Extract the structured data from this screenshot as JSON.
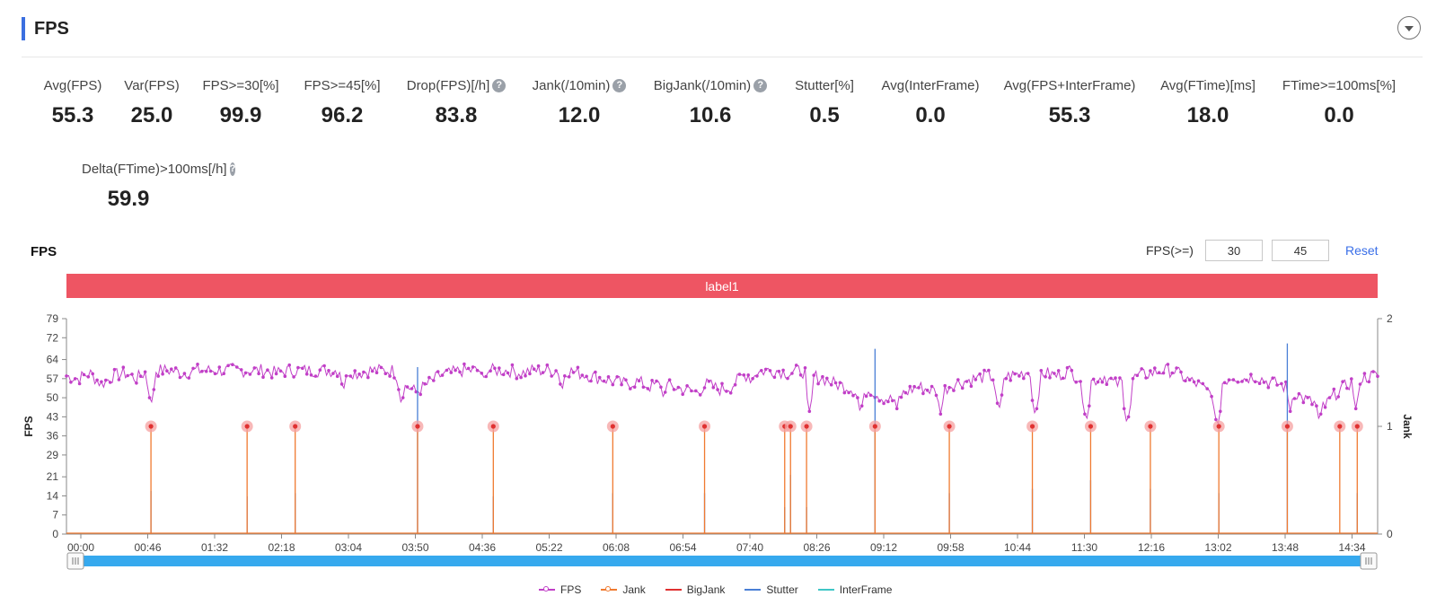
{
  "header": {
    "title": "FPS"
  },
  "metrics": [
    {
      "label": "Avg(FPS)",
      "value": "55.3",
      "help": false
    },
    {
      "label": "Var(FPS)",
      "value": "25.0",
      "help": false
    },
    {
      "label": "FPS>=30[%]",
      "value": "99.9",
      "help": false
    },
    {
      "label": "FPS>=45[%]",
      "value": "96.2",
      "help": false
    },
    {
      "label": "Drop(FPS)[/h]",
      "value": "83.8",
      "help": true
    },
    {
      "label": "Jank(/10min)",
      "value": "12.0",
      "help": true
    },
    {
      "label": "BigJank(/10min)",
      "value": "10.6",
      "help": true
    },
    {
      "label": "Stutter[%]",
      "value": "0.5",
      "help": false
    },
    {
      "label": "Avg(InterFrame)",
      "value": "0.0",
      "help": false
    },
    {
      "label": "Avg(FPS+InterFrame)",
      "value": "55.3",
      "help": false
    },
    {
      "label": "Avg(FTime)[ms]",
      "value": "18.0",
      "help": false
    },
    {
      "label": "FTime>=100ms[%]",
      "value": "0.0",
      "help": false
    },
    {
      "label": "Delta(FTime)>100ms[/h]",
      "value": "59.9",
      "help": true
    }
  ],
  "chart_section": {
    "title": "FPS",
    "threshold_label": "FPS(>=)",
    "threshold_low": "30",
    "threshold_high": "45",
    "reset_label": "Reset",
    "band_label": "label1"
  },
  "colors": {
    "fps": "#c13fc7",
    "jank": "#f07a30",
    "bigjank": "#e03131",
    "stutter": "#4a7fd6",
    "interframe": "#3fc6c6",
    "band": "#ee5563",
    "slider": "#36a9ee"
  },
  "chart_data": {
    "type": "line",
    "title": "",
    "ylabel_left": "FPS",
    "ylabel_right": "Jank",
    "yticks_left": [
      0,
      7,
      14,
      21,
      29,
      36,
      43,
      50,
      57,
      64,
      72,
      79
    ],
    "yticks_right": [
      0,
      1,
      2
    ],
    "ylim_left": [
      0,
      79
    ],
    "ylim_right": [
      0,
      2
    ],
    "xticks": [
      "00:00",
      "00:46",
      "01:32",
      "02:18",
      "03:04",
      "03:50",
      "04:36",
      "05:22",
      "06:08",
      "06:54",
      "07:40",
      "08:26",
      "09:12",
      "09:58",
      "10:44",
      "11:30",
      "12:16",
      "13:02",
      "13:48",
      "14:34"
    ],
    "x_unit": "seconds",
    "xlim": [
      0,
      900
    ],
    "fps_series": [
      [
        0,
        58
      ],
      [
        8,
        57
      ],
      [
        16,
        59
      ],
      [
        24,
        55
      ],
      [
        32,
        58
      ],
      [
        40,
        59
      ],
      [
        48,
        57
      ],
      [
        56,
        60
      ],
      [
        64,
        60
      ],
      [
        72,
        60
      ],
      [
        80,
        59
      ],
      [
        88,
        60
      ],
      [
        96,
        60
      ],
      [
        104,
        60
      ],
      [
        112,
        60
      ],
      [
        120,
        60
      ],
      [
        128,
        60
      ],
      [
        136,
        60
      ],
      [
        144,
        59
      ],
      [
        152,
        60
      ],
      [
        160,
        60
      ],
      [
        168,
        60
      ],
      [
        176,
        60
      ],
      [
        184,
        60
      ],
      [
        192,
        60
      ],
      [
        200,
        59
      ],
      [
        208,
        60
      ],
      [
        216,
        60
      ],
      [
        224,
        60
      ],
      [
        232,
        55
      ],
      [
        240,
        52
      ],
      [
        248,
        55
      ],
      [
        256,
        58
      ],
      [
        264,
        59
      ],
      [
        272,
        60
      ],
      [
        280,
        60
      ],
      [
        288,
        60
      ],
      [
        296,
        60
      ],
      [
        304,
        60
      ],
      [
        312,
        59
      ],
      [
        320,
        60
      ],
      [
        328,
        60
      ],
      [
        336,
        60
      ],
      [
        344,
        60
      ],
      [
        352,
        59
      ],
      [
        360,
        58
      ],
      [
        368,
        57
      ],
      [
        376,
        56
      ],
      [
        384,
        55
      ],
      [
        392,
        56
      ],
      [
        400,
        54
      ],
      [
        408,
        55
      ],
      [
        416,
        54
      ],
      [
        424,
        53
      ],
      [
        432,
        52
      ],
      [
        440,
        55
      ],
      [
        448,
        53
      ],
      [
        456,
        54
      ],
      [
        464,
        58
      ],
      [
        472,
        59
      ],
      [
        480,
        60
      ],
      [
        488,
        60
      ],
      [
        496,
        59
      ],
      [
        504,
        60
      ],
      [
        512,
        58
      ],
      [
        520,
        57
      ],
      [
        528,
        55
      ],
      [
        536,
        54
      ],
      [
        544,
        52
      ],
      [
        552,
        53
      ],
      [
        560,
        50
      ],
      [
        568,
        49
      ],
      [
        576,
        52
      ],
      [
        584,
        54
      ],
      [
        592,
        53
      ],
      [
        600,
        52
      ],
      [
        608,
        55
      ],
      [
        616,
        56
      ],
      [
        624,
        57
      ],
      [
        632,
        58
      ],
      [
        640,
        57
      ],
      [
        648,
        58
      ],
      [
        656,
        59
      ],
      [
        664,
        60
      ],
      [
        672,
        59
      ],
      [
        680,
        58
      ],
      [
        688,
        60
      ],
      [
        696,
        57
      ],
      [
        704,
        56
      ],
      [
        712,
        58
      ],
      [
        720,
        55
      ],
      [
        728,
        56
      ],
      [
        736,
        58
      ],
      [
        744,
        59
      ],
      [
        752,
        60
      ],
      [
        760,
        60
      ],
      [
        768,
        57
      ],
      [
        776,
        55
      ],
      [
        784,
        52
      ],
      [
        792,
        55
      ],
      [
        800,
        58
      ],
      [
        808,
        57
      ],
      [
        816,
        58
      ],
      [
        824,
        56
      ],
      [
        832,
        55
      ],
      [
        840,
        53
      ],
      [
        848,
        50
      ],
      [
        856,
        48
      ],
      [
        864,
        47
      ],
      [
        872,
        52
      ],
      [
        880,
        55
      ],
      [
        888,
        57
      ],
      [
        896,
        58
      ]
    ],
    "fps_dips": [
      [
        58,
        47
      ],
      [
        190,
        52
      ],
      [
        230,
        47
      ],
      [
        286,
        56
      ],
      [
        340,
        52
      ],
      [
        410,
        49
      ],
      [
        470,
        54
      ],
      [
        510,
        45
      ],
      [
        545,
        44
      ],
      [
        570,
        46
      ],
      [
        600,
        44
      ],
      [
        640,
        45
      ],
      [
        665,
        43
      ],
      [
        700,
        41
      ],
      [
        728,
        40
      ],
      [
        790,
        39
      ],
      [
        840,
        45
      ],
      [
        860,
        41
      ],
      [
        885,
        46
      ]
    ],
    "jank_events": [
      58,
      124,
      157,
      241,
      293,
      375,
      438,
      493,
      497,
      508,
      555,
      606,
      663,
      703,
      744,
      791,
      838,
      874,
      886
    ],
    "stutter_events": [
      [
        58,
        0.4
      ],
      [
        124,
        0.35
      ],
      [
        157,
        0.38
      ],
      [
        241,
        1.55
      ],
      [
        293,
        0.35
      ],
      [
        375,
        0.38
      ],
      [
        438,
        0.38
      ],
      [
        493,
        0.25
      ],
      [
        497,
        0.55
      ],
      [
        508,
        0.25
      ],
      [
        555,
        1.72
      ],
      [
        606,
        0.38
      ],
      [
        663,
        0.42
      ],
      [
        703,
        0.5
      ],
      [
        744,
        0.42
      ],
      [
        791,
        0.38
      ],
      [
        838,
        1.77
      ],
      [
        886,
        0.38
      ]
    ],
    "legend": [
      "FPS",
      "Jank",
      "BigJank",
      "Stutter",
      "InterFrame"
    ]
  }
}
